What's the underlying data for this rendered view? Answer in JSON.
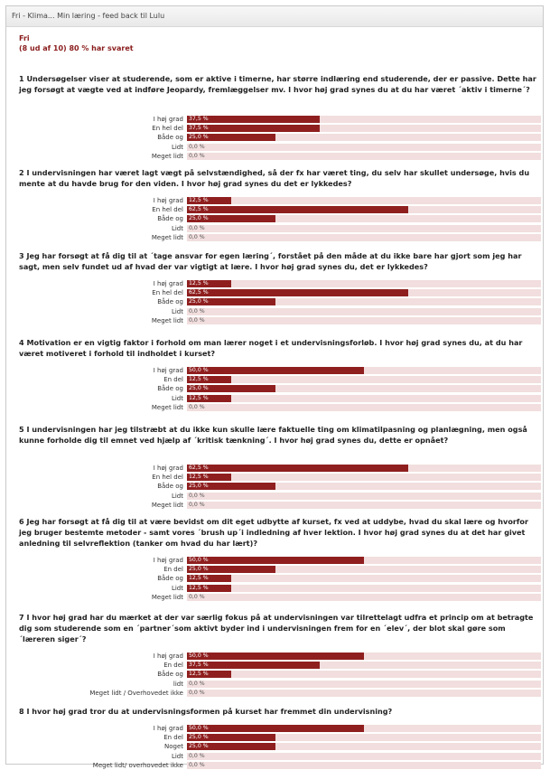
{
  "window": {
    "title": "Fri - Klima... Min læring - feed back til Lulu"
  },
  "header": {
    "line1": "Fri",
    "line2": "(8 ud af 10) 80 % har svaret"
  },
  "colors": {
    "bar": "#8f1f1f",
    "track": "#f2dede",
    "header": "#8a1c1c"
  },
  "chart_data": [
    {
      "type": "bar",
      "title": "1 Undersøgelser viser at studerende, som er aktive i timerne, har større indlæring end studerende, der er passive. Dette har jeg forsøgt at vægte ved at indføre Jeopardy, fremlæggelser mv. I hvor høj grad synes du at du har været ´aktiv i timerne´?",
      "categories": [
        "I høj grad",
        "En hel del",
        "Både og",
        "Lidt",
        "Meget lidt"
      ],
      "values": [
        37.5,
        37.5,
        25.0,
        0.0,
        0.0
      ],
      "value_labels": [
        "37,5 %",
        "37,5 %",
        "25,0 %",
        "0,0 %",
        "0,0 %"
      ],
      "xlim": [
        0,
        100
      ]
    },
    {
      "type": "bar",
      "title": "2 I undervisningen har været lagt vægt på selvstændighed, så der fx har været ting, du selv har skullet undersøge, hvis du mente at du havde brug for den viden. I hvor høj grad synes du det er lykkedes?",
      "categories": [
        "I høj grad",
        "En hel del",
        "Både og",
        "Lidt",
        "Meget lidt"
      ],
      "values": [
        12.5,
        62.5,
        25.0,
        0.0,
        0.0
      ],
      "value_labels": [
        "12,5 %",
        "62,5 %",
        "25,0 %",
        "0,0 %",
        "0,0 %"
      ],
      "xlim": [
        0,
        100
      ]
    },
    {
      "type": "bar",
      "title": "3 Jeg har forsøgt at få dig til at ´tage ansvar for egen læring´, forstået på den måde at du ikke bare har gjort som jeg har sagt, men selv fundet ud af hvad der var vigtigt at lære. I hvor høj grad synes du, det er lykkedes?",
      "categories": [
        "I høj grad",
        "En hel del",
        "Både og",
        "Lidt",
        "Meget lidt"
      ],
      "values": [
        12.5,
        62.5,
        25.0,
        0.0,
        0.0
      ],
      "value_labels": [
        "12,5 %",
        "62,5 %",
        "25,0 %",
        "0,0 %",
        "0,0 %"
      ],
      "xlim": [
        0,
        100
      ]
    },
    {
      "type": "bar",
      "title": "4 Motivation er en vigtig faktor i forhold om man lærer noget i et undervisningsforløb. I hvor høj grad synes du, at du har været motiveret i forhold til indholdet i kurset?",
      "categories": [
        "I høj grad",
        "En del",
        "Både og",
        "Lidt",
        "Meget lidt"
      ],
      "values": [
        50.0,
        12.5,
        25.0,
        12.5,
        0.0
      ],
      "value_labels": [
        "50,0 %",
        "12,5 %",
        "25,0 %",
        "12,5 %",
        "0,0 %"
      ],
      "xlim": [
        0,
        100
      ]
    },
    {
      "type": "bar",
      "title": "5 I undervisningen har jeg tilstræbt at du ikke kun skulle lære faktuelle ting om klimatilpasning og planlægning, men også kunne forholde dig til emnet ved hjælp af ´kritisk tænkning´. I hvor høj grad synes du, dette er opnået?",
      "categories": [
        "I høj grad",
        "En hel del",
        "Både og",
        "Lidt",
        "Meget lidt"
      ],
      "values": [
        62.5,
        12.5,
        25.0,
        0.0,
        0.0
      ],
      "value_labels": [
        "62,5 %",
        "12,5 %",
        "25,0 %",
        "0,0 %",
        "0,0 %"
      ],
      "xlim": [
        0,
        100
      ]
    },
    {
      "type": "bar",
      "title": "6 Jeg har forsøgt at få dig til at være bevidst om dit eget udbytte af kurset, fx ved at uddybe, hvad du skal lære og hvorfor jeg bruger bestemte metoder - samt vores ´brush up´i indledning af hver lektion. I hvor høj grad synes du at det har givet anledning til selvreflektion (tanker om hvad du har lært)?",
      "categories": [
        "I høj grad",
        "En del",
        "Både og",
        "Lidt",
        "Meget lidt"
      ],
      "values": [
        50.0,
        25.0,
        12.5,
        12.5,
        0.0
      ],
      "value_labels": [
        "50,0 %",
        "25,0 %",
        "12,5 %",
        "12,5 %",
        "0,0 %"
      ],
      "xlim": [
        0,
        100
      ]
    },
    {
      "type": "bar",
      "title": "7 I hvor høj grad har du mærket at der var særlig fokus på at undervisningen var tilrettelagt udfra et princip om at betragte dig som studerende som en ´partner´som aktivt byder ind i undervisningen frem for en ´elev´, der blot skal gøre som ´læreren siger´?",
      "categories": [
        "I høj grad",
        "En del",
        "Både og",
        "lidt",
        "Meget lidt / Overhovedet ikke"
      ],
      "values": [
        50.0,
        37.5,
        12.5,
        0.0,
        0.0
      ],
      "value_labels": [
        "50,0 %",
        "37,5 %",
        "12,5 %",
        "0,0 %",
        "0,0 %"
      ],
      "xlim": [
        0,
        100
      ]
    },
    {
      "type": "bar",
      "title": "8 I hvor høj grad tror du at undervisningsformen på kurset har fremmet din undervisning?",
      "categories": [
        "I høj grad",
        "En del",
        "Noget",
        "Lidt",
        "Meget lidt/ overhovedet ikke"
      ],
      "values": [
        50.0,
        25.0,
        25.0,
        0.0,
        0.0
      ],
      "value_labels": [
        "50,0 %",
        "25,0 %",
        "25,0 %",
        "0,0 %",
        "0,0 %"
      ],
      "xlim": [
        0,
        100
      ]
    }
  ]
}
